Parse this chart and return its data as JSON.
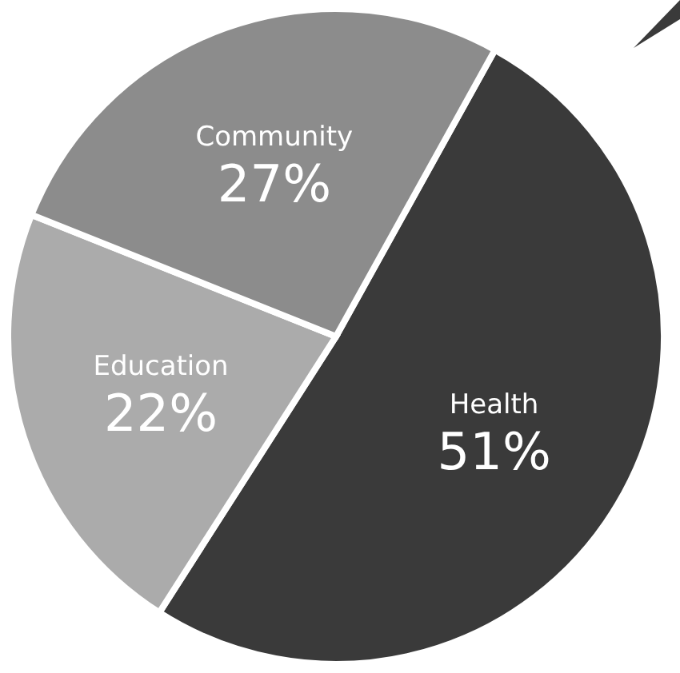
{
  "chart_data": {
    "type": "pie",
    "categories": [
      "Health",
      "Education",
      "Community"
    ],
    "values": [
      51,
      22,
      27
    ],
    "colors": [
      "#3a3a3a",
      "#ababab",
      "#8c8c8c"
    ],
    "value_labels": [
      "51%",
      "22%",
      "27%"
    ]
  }
}
